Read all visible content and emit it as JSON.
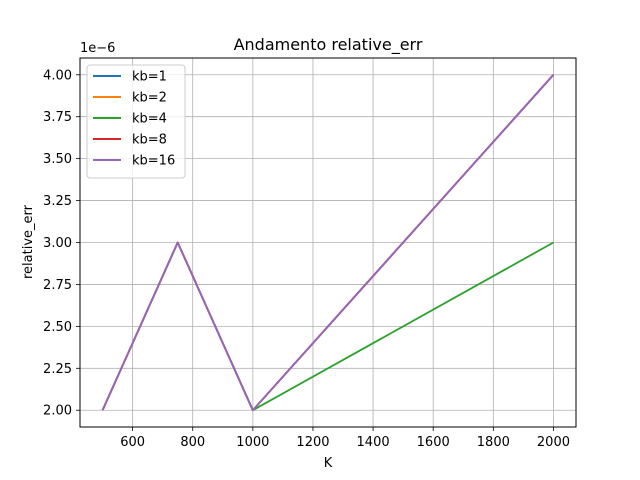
{
  "chart_data": {
    "type": "line",
    "title": "Andamento relative_err",
    "xlabel": "K",
    "ylabel": "relative_err",
    "y_offset_label": "1e−6",
    "xlim": [
      425,
      2075
    ],
    "ylim": [
      1.9,
      4.1
    ],
    "x_ticks": [
      600,
      800,
      1000,
      1200,
      1400,
      1600,
      1800,
      2000
    ],
    "x_tick_labels": [
      "600",
      "800",
      "1000",
      "1200",
      "1400",
      "1600",
      "1800",
      "2000"
    ],
    "y_ticks": [
      2.0,
      2.25,
      2.5,
      2.75,
      3.0,
      3.25,
      3.5,
      3.75,
      4.0
    ],
    "y_tick_labels": [
      "2.00",
      "2.25",
      "2.50",
      "2.75",
      "3.00",
      "3.25",
      "3.50",
      "3.75",
      "4.00"
    ],
    "grid": true,
    "legend_position": "top-left",
    "x": [
      500,
      750,
      1000,
      2000
    ],
    "series": [
      {
        "name": "kb=1",
        "color": "#1f77b4",
        "values": [
          2.0,
          3.0,
          2.0,
          4.0
        ]
      },
      {
        "name": "kb=2",
        "color": "#ff7f0e",
        "values": [
          2.0,
          3.0,
          2.0,
          4.0
        ]
      },
      {
        "name": "kb=4",
        "color": "#2ca02c",
        "values": [
          2.0,
          3.0,
          2.0,
          3.0
        ]
      },
      {
        "name": "kb=8",
        "color": "#d62728",
        "values": [
          2.0,
          3.0,
          2.0,
          4.0
        ]
      },
      {
        "name": "kb=16",
        "color": "#9467bd",
        "values": [
          2.0,
          3.0,
          2.0,
          4.0
        ]
      }
    ]
  }
}
